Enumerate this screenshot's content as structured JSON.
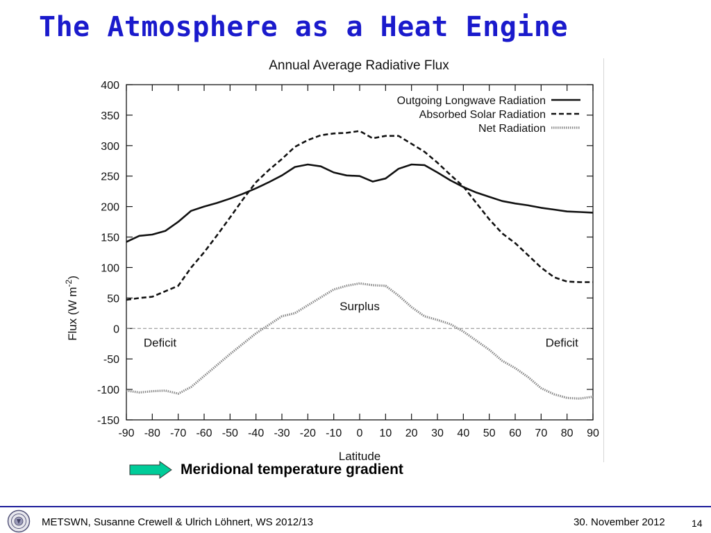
{
  "slide": {
    "title": "The Atmosphere as a Heat Engine",
    "gradient_label": "Meridional temperature gradient",
    "arrow_color": "#00cc99",
    "title_color": "#1a1acc"
  },
  "footer": {
    "left_text": "METSWN, Susanne Crewell & Ulrich Löhnert,  WS 2012/13",
    "date": "30. November 2012",
    "page_number": "14",
    "line_color": "#1a1a99"
  },
  "chart_data": {
    "type": "line",
    "title": "Annual Average Radiative Flux",
    "xlabel": "Latitude",
    "ylabel": "Flux (W m-2)",
    "xlim": [
      -90,
      90
    ],
    "ylim": [
      -150,
      400
    ],
    "xticks": [
      -90,
      -80,
      -70,
      -60,
      -50,
      -40,
      -30,
      -20,
      -10,
      0,
      10,
      20,
      30,
      40,
      50,
      60,
      70,
      80,
      90
    ],
    "yticks": [
      400,
      350,
      300,
      250,
      200,
      150,
      100,
      50,
      0,
      -50,
      -100,
      -150
    ],
    "grid": false,
    "legend_position": "top-right",
    "zero_line": true,
    "series": [
      {
        "name": "Outgoing Longwave Radiation",
        "style": "solid",
        "x": [
          -90,
          -85,
          -80,
          -75,
          -70,
          -65,
          -60,
          -55,
          -50,
          -45,
          -40,
          -35,
          -30,
          -25,
          -20,
          -15,
          -10,
          -5,
          0,
          5,
          10,
          15,
          20,
          25,
          30,
          35,
          40,
          45,
          50,
          55,
          60,
          65,
          70,
          75,
          80,
          85,
          90
        ],
        "values": [
          142,
          152,
          154,
          160,
          175,
          193,
          200,
          206,
          213,
          221,
          230,
          240,
          251,
          265,
          269,
          266,
          256,
          251,
          250,
          241,
          246,
          262,
          269,
          268,
          256,
          243,
          232,
          223,
          216,
          209,
          205,
          202,
          198,
          195,
          192,
          191,
          190
        ]
      },
      {
        "name": "Absorbed Solar Radiation",
        "style": "dashed",
        "x": [
          -90,
          -85,
          -80,
          -75,
          -70,
          -65,
          -60,
          -55,
          -50,
          -45,
          -40,
          -35,
          -30,
          -25,
          -20,
          -15,
          -10,
          -5,
          0,
          5,
          10,
          15,
          20,
          25,
          30,
          35,
          40,
          45,
          50,
          55,
          60,
          65,
          70,
          75,
          80,
          85,
          90
        ],
        "values": [
          47,
          50,
          52,
          61,
          70,
          100,
          125,
          153,
          182,
          212,
          240,
          260,
          278,
          298,
          309,
          317,
          320,
          321,
          324,
          312,
          316,
          316,
          303,
          290,
          272,
          252,
          233,
          206,
          179,
          156,
          140,
          120,
          100,
          84,
          77,
          76,
          76
        ]
      },
      {
        "name": "Net Radiation",
        "style": "dotted",
        "x": [
          -90,
          -85,
          -80,
          -75,
          -70,
          -65,
          -60,
          -55,
          -50,
          -45,
          -40,
          -35,
          -30,
          -25,
          -20,
          -15,
          -10,
          -5,
          0,
          5,
          10,
          15,
          20,
          25,
          30,
          35,
          40,
          45,
          50,
          55,
          60,
          65,
          70,
          75,
          80,
          85,
          90
        ],
        "values": [
          -102,
          -105,
          -103,
          -102,
          -107,
          -96,
          -78,
          -60,
          -42,
          -25,
          -8,
          6,
          20,
          25,
          38,
          51,
          64,
          70,
          74,
          71,
          70,
          54,
          35,
          20,
          14,
          7,
          -5,
          -20,
          -35,
          -53,
          -65,
          -80,
          -98,
          -108,
          -114,
          -115,
          -112
        ]
      }
    ],
    "annotations": [
      {
        "text": "Surplus",
        "x": 0,
        "y": 30
      },
      {
        "text": "Deficit",
        "x": -77,
        "y": -30
      },
      {
        "text": "Deficit",
        "x": 78,
        "y": -30
      }
    ]
  }
}
